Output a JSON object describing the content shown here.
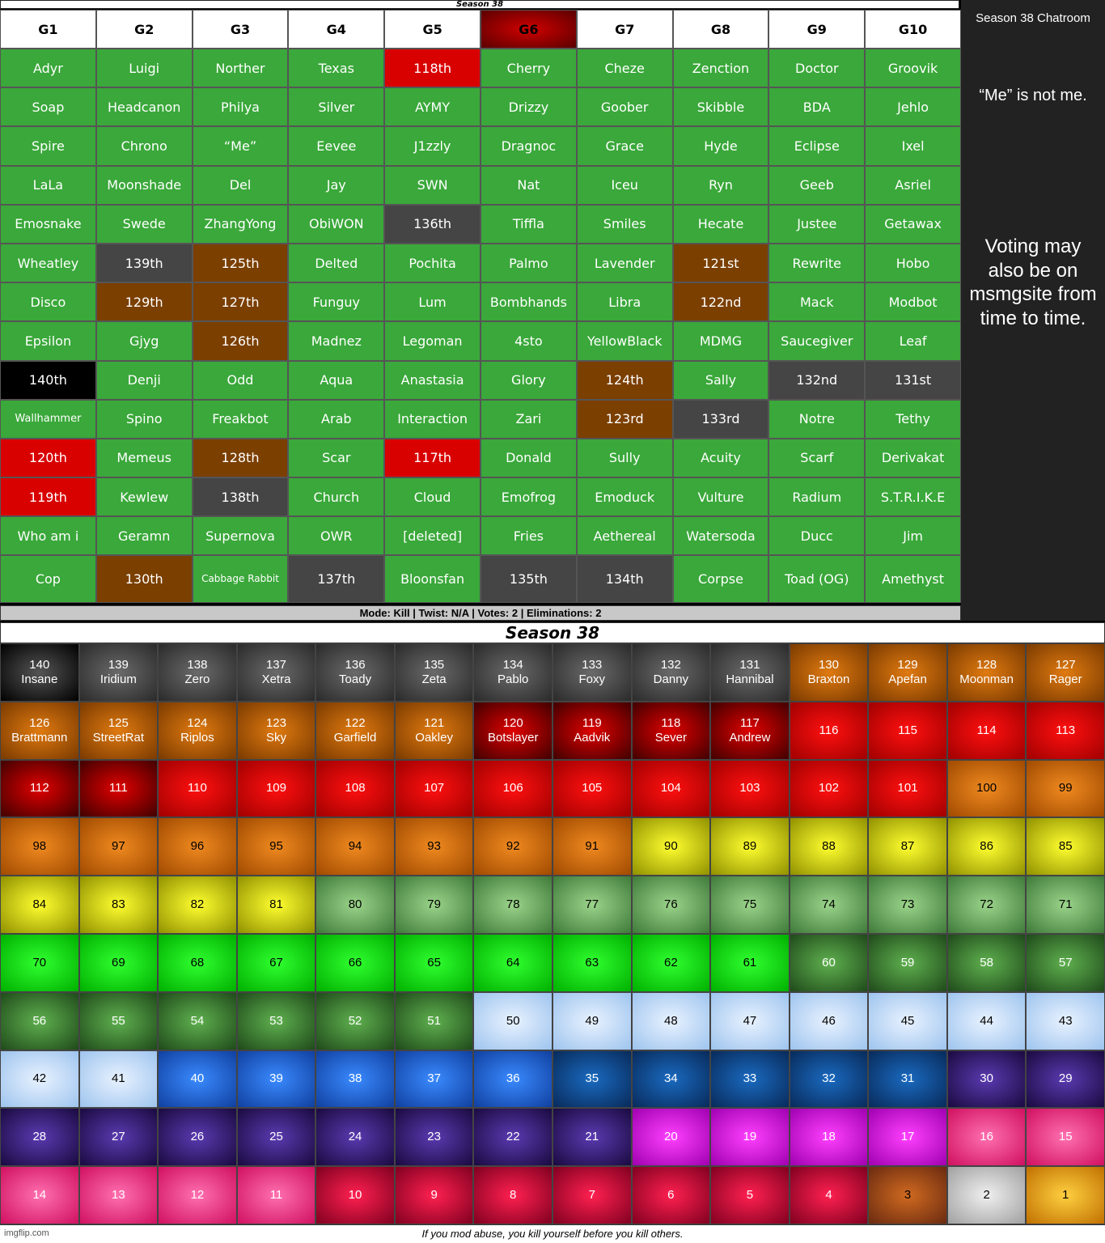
{
  "top_title": "Season 38",
  "groups": {
    "headers": [
      "G1",
      "G2",
      "G3",
      "G4",
      "G5",
      "G6",
      "G7",
      "G8",
      "G9",
      "G10"
    ],
    "rows": [
      [
        [
          "Adyr",
          "alive"
        ],
        [
          "Luigi",
          "alive"
        ],
        [
          "Norther",
          "alive"
        ],
        [
          "Texas",
          "alive"
        ],
        [
          "118th",
          "red"
        ],
        [
          "Cherry",
          "alive"
        ],
        [
          "Cheze",
          "alive"
        ],
        [
          "Zenction",
          "alive"
        ],
        [
          "Doctor",
          "alive"
        ],
        [
          "Groovik",
          "alive"
        ]
      ],
      [
        [
          "Soap",
          "alive"
        ],
        [
          "Headcanon",
          "alive"
        ],
        [
          "Philya",
          "alive"
        ],
        [
          "Silver",
          "alive"
        ],
        [
          "AYMY",
          "alive"
        ],
        [
          "Drizzy",
          "alive"
        ],
        [
          "Goober",
          "alive"
        ],
        [
          "Skibble",
          "alive"
        ],
        [
          "BDA",
          "alive"
        ],
        [
          "Jehlo",
          "alive"
        ]
      ],
      [
        [
          "Spire",
          "alive"
        ],
        [
          "Chrono",
          "alive"
        ],
        [
          "“Me”",
          "alive"
        ],
        [
          "Eevee",
          "alive"
        ],
        [
          "J1zzly",
          "alive"
        ],
        [
          "Dragnoc",
          "alive"
        ],
        [
          "Grace",
          "alive"
        ],
        [
          "Hyde",
          "alive"
        ],
        [
          "Eclipse",
          "alive"
        ],
        [
          "Ixel",
          "alive"
        ]
      ],
      [
        [
          "LaLa",
          "alive"
        ],
        [
          "Moonshade",
          "alive"
        ],
        [
          "Del",
          "alive"
        ],
        [
          "Jay",
          "alive"
        ],
        [
          "SWN",
          "alive"
        ],
        [
          "Nat",
          "alive"
        ],
        [
          "Iceu",
          "alive"
        ],
        [
          "Ryn",
          "alive"
        ],
        [
          "Geeb",
          "alive"
        ],
        [
          "Asriel",
          "alive"
        ]
      ],
      [
        [
          "Emosnake",
          "alive"
        ],
        [
          "Swede",
          "alive"
        ],
        [
          "ZhangYong",
          "alive"
        ],
        [
          "ObiWON",
          "alive"
        ],
        [
          "136th",
          "gray"
        ],
        [
          "Tiffla",
          "alive"
        ],
        [
          "Smiles",
          "alive"
        ],
        [
          "Hecate",
          "alive"
        ],
        [
          "Justee",
          "alive"
        ],
        [
          "Getawax",
          "alive"
        ]
      ],
      [
        [
          "Wheatley",
          "alive"
        ],
        [
          "139th",
          "gray"
        ],
        [
          "125th",
          "brown"
        ],
        [
          "Delted",
          "alive"
        ],
        [
          "Pochita",
          "alive"
        ],
        [
          "Palmo",
          "alive"
        ],
        [
          "Lavender",
          "alive"
        ],
        [
          "121st",
          "brown"
        ],
        [
          "Rewrite",
          "alive"
        ],
        [
          "Hobo",
          "alive"
        ]
      ],
      [
        [
          "Disco",
          "alive"
        ],
        [
          "129th",
          "brown"
        ],
        [
          "127th",
          "brown"
        ],
        [
          "Funguy",
          "alive"
        ],
        [
          "Lum",
          "alive"
        ],
        [
          "Bombhands",
          "alive"
        ],
        [
          "Libra",
          "alive"
        ],
        [
          "122nd",
          "brown"
        ],
        [
          "Mack",
          "alive"
        ],
        [
          "Modbot",
          "alive"
        ]
      ],
      [
        [
          "Epsilon",
          "alive"
        ],
        [
          "Gjyg",
          "alive"
        ],
        [
          "126th",
          "brown"
        ],
        [
          "Madnez",
          "alive"
        ],
        [
          "Legoman",
          "alive"
        ],
        [
          "4sto",
          "alive"
        ],
        [
          "YellowBlack",
          "alive"
        ],
        [
          "MDMG",
          "alive"
        ],
        [
          "Saucegiver",
          "alive"
        ],
        [
          "Leaf",
          "alive"
        ]
      ],
      [
        [
          "140th",
          "black"
        ],
        [
          "Denji",
          "alive"
        ],
        [
          "Odd",
          "alive"
        ],
        [
          "Aqua",
          "alive"
        ],
        [
          "Anastasia",
          "alive"
        ],
        [
          "Glory",
          "alive"
        ],
        [
          "124th",
          "brown"
        ],
        [
          "Sally",
          "alive"
        ],
        [
          "132nd",
          "gray"
        ],
        [
          "131st",
          "gray"
        ]
      ],
      [
        [
          "Wallhammer",
          "alive"
        ],
        [
          "Spino",
          "alive"
        ],
        [
          "Freakbot",
          "alive"
        ],
        [
          "Arab",
          "alive"
        ],
        [
          "Interaction",
          "alive"
        ],
        [
          "Zari",
          "alive"
        ],
        [
          "123rd",
          "brown"
        ],
        [
          "133rd",
          "gray"
        ],
        [
          "Notre",
          "alive"
        ],
        [
          "Tethy",
          "alive"
        ]
      ],
      [
        [
          "120th",
          "red"
        ],
        [
          "Memeus",
          "alive"
        ],
        [
          "128th",
          "brown"
        ],
        [
          "Scar",
          "alive"
        ],
        [
          "117th",
          "red"
        ],
        [
          "Donald",
          "alive"
        ],
        [
          "Sully",
          "alive"
        ],
        [
          "Acuity",
          "alive"
        ],
        [
          "Scarf",
          "alive"
        ],
        [
          "Derivakat",
          "alive"
        ]
      ],
      [
        [
          "119th",
          "red"
        ],
        [
          "Kewlew",
          "alive"
        ],
        [
          "138th",
          "gray"
        ],
        [
          "Church",
          "alive"
        ],
        [
          "Cloud",
          "alive"
        ],
        [
          "Emofrog",
          "alive"
        ],
        [
          "Emoduck",
          "alive"
        ],
        [
          "Vulture",
          "alive"
        ],
        [
          "Radium",
          "alive"
        ],
        [
          "S.T.R.I.K.E",
          "alive"
        ]
      ],
      [
        [
          "Who am i",
          "alive"
        ],
        [
          "Geramn",
          "alive"
        ],
        [
          "Supernova",
          "alive"
        ],
        [
          "OWR",
          "alive"
        ],
        [
          "[deleted]",
          "alive"
        ],
        [
          "Fries",
          "alive"
        ],
        [
          "Aethereal",
          "alive"
        ],
        [
          "Watersoda",
          "alive"
        ],
        [
          "Ducc",
          "alive"
        ],
        [
          "Jim",
          "alive"
        ]
      ],
      [
        [
          "Cop",
          "alive"
        ],
        [
          "130th",
          "brown"
        ],
        [
          "Cabbage Rabbit",
          "alive"
        ],
        [
          "137th",
          "gray"
        ],
        [
          "Bloonsfan",
          "alive"
        ],
        [
          "135th",
          "gray"
        ],
        [
          "134th",
          "gray"
        ],
        [
          "Corpse",
          "alive"
        ],
        [
          "Toad (OG)",
          "alive"
        ],
        [
          "Amethyst",
          "alive"
        ]
      ]
    ]
  },
  "mode_bar": "Mode: Kill | Twist: N/A | Votes: 2 | Eliminations: 2",
  "side": {
    "title": "Season 38 Chatroom",
    "note": "“Me” is not me.",
    "voting": "Voting may also be on msmgsite from time to time."
  },
  "bottom_title": "Season 38",
  "colors": {
    "alive": "#3aa83a",
    "red": "#d90000",
    "brown": "#7b3f00",
    "gray": "#454545",
    "black": "#000000"
  },
  "ranks": [
    [
      "140",
      "Insane",
      "black"
    ],
    [
      "139",
      "Iridium",
      "gray"
    ],
    [
      "138",
      "Zero",
      "gray"
    ],
    [
      "137",
      "Xetra",
      "gray"
    ],
    [
      "136",
      "Toady",
      "gray"
    ],
    [
      "135",
      "Zeta",
      "gray"
    ],
    [
      "134",
      "Pablo",
      "gray"
    ],
    [
      "133",
      "Foxy",
      "gray"
    ],
    [
      "132",
      "Danny",
      "gray"
    ],
    [
      "131",
      "Hannibal",
      "gray"
    ],
    [
      "130",
      "Braxton",
      "orange"
    ],
    [
      "129",
      "Apefan",
      "orange"
    ],
    [
      "128",
      "Moonman",
      "orange"
    ],
    [
      "127",
      "Rager",
      "orange"
    ],
    [
      "126",
      "Brattmann",
      "orange"
    ],
    [
      "125",
      "StreetRat",
      "orange"
    ],
    [
      "124",
      "Riplos",
      "orange"
    ],
    [
      "123",
      "Sky",
      "orange"
    ],
    [
      "122",
      "Garfield",
      "orange"
    ],
    [
      "121",
      "Oakley",
      "orange"
    ],
    [
      "120",
      "Botslayer",
      "darkred"
    ],
    [
      "119",
      "Aadvik",
      "darkred"
    ],
    [
      "118",
      "Sever",
      "darkred"
    ],
    [
      "117",
      "Andrew",
      "darkred"
    ],
    [
      "116",
      "",
      "red"
    ],
    [
      "115",
      "",
      "red"
    ],
    [
      "114",
      "",
      "red"
    ],
    [
      "113",
      "",
      "red"
    ],
    [
      "112",
      "",
      "darkred"
    ],
    [
      "111",
      "",
      "darkred"
    ],
    [
      "110",
      "",
      "red"
    ],
    [
      "109",
      "",
      "red"
    ],
    [
      "108",
      "",
      "red"
    ],
    [
      "107",
      "",
      "red"
    ],
    [
      "106",
      "",
      "red"
    ],
    [
      "105",
      "",
      "red"
    ],
    [
      "104",
      "",
      "red"
    ],
    [
      "103",
      "",
      "red"
    ],
    [
      "102",
      "",
      "red"
    ],
    [
      "101",
      "",
      "red"
    ],
    [
      "100",
      "",
      "orange2"
    ],
    [
      "99",
      "",
      "orange2"
    ],
    [
      "98",
      "",
      "orange2"
    ],
    [
      "97",
      "",
      "orange2"
    ],
    [
      "96",
      "",
      "orange2"
    ],
    [
      "95",
      "",
      "orange2"
    ],
    [
      "94",
      "",
      "orange2"
    ],
    [
      "93",
      "",
      "orange2"
    ],
    [
      "92",
      "",
      "orange2"
    ],
    [
      "91",
      "",
      "orange2"
    ],
    [
      "90",
      "",
      "yellow"
    ],
    [
      "89",
      "",
      "yellow"
    ],
    [
      "88",
      "",
      "yellow"
    ],
    [
      "87",
      "",
      "yellow"
    ],
    [
      "86",
      "",
      "yellow"
    ],
    [
      "85",
      "",
      "yellow"
    ],
    [
      "84",
      "",
      "yellow"
    ],
    [
      "83",
      "",
      "yellow"
    ],
    [
      "82",
      "",
      "yellow"
    ],
    [
      "81",
      "",
      "yellow"
    ],
    [
      "80",
      "",
      "sage"
    ],
    [
      "79",
      "",
      "sage"
    ],
    [
      "78",
      "",
      "sage"
    ],
    [
      "77",
      "",
      "sage"
    ],
    [
      "76",
      "",
      "sage"
    ],
    [
      "75",
      "",
      "sage"
    ],
    [
      "74",
      "",
      "sage"
    ],
    [
      "73",
      "",
      "sage"
    ],
    [
      "72",
      "",
      "sage"
    ],
    [
      "71",
      "",
      "sage"
    ],
    [
      "70",
      "",
      "lime"
    ],
    [
      "69",
      "",
      "lime"
    ],
    [
      "68",
      "",
      "lime"
    ],
    [
      "67",
      "",
      "lime"
    ],
    [
      "66",
      "",
      "lime"
    ],
    [
      "65",
      "",
      "lime"
    ],
    [
      "64",
      "",
      "lime"
    ],
    [
      "63",
      "",
      "lime"
    ],
    [
      "62",
      "",
      "lime"
    ],
    [
      "61",
      "",
      "lime"
    ],
    [
      "60",
      "",
      "forest"
    ],
    [
      "59",
      "",
      "forest"
    ],
    [
      "58",
      "",
      "forest"
    ],
    [
      "57",
      "",
      "forest"
    ],
    [
      "56",
      "",
      "forest"
    ],
    [
      "55",
      "",
      "forest"
    ],
    [
      "54",
      "",
      "forest"
    ],
    [
      "53",
      "",
      "forest"
    ],
    [
      "52",
      "",
      "forest"
    ],
    [
      "51",
      "",
      "forest"
    ],
    [
      "50",
      "",
      "ice"
    ],
    [
      "49",
      "",
      "ice"
    ],
    [
      "48",
      "",
      "ice"
    ],
    [
      "47",
      "",
      "ice"
    ],
    [
      "46",
      "",
      "ice"
    ],
    [
      "45",
      "",
      "ice"
    ],
    [
      "44",
      "",
      "ice"
    ],
    [
      "43",
      "",
      "ice"
    ],
    [
      "42",
      "",
      "ice"
    ],
    [
      "41",
      "",
      "ice"
    ],
    [
      "40",
      "",
      "blue"
    ],
    [
      "39",
      "",
      "blue"
    ],
    [
      "38",
      "",
      "blue"
    ],
    [
      "37",
      "",
      "blue"
    ],
    [
      "36",
      "",
      "blue"
    ],
    [
      "35",
      "",
      "navy"
    ],
    [
      "34",
      "",
      "navy"
    ],
    [
      "33",
      "",
      "navy"
    ],
    [
      "32",
      "",
      "navy"
    ],
    [
      "31",
      "",
      "navy"
    ],
    [
      "30",
      "",
      "indigo"
    ],
    [
      "29",
      "",
      "indigo"
    ],
    [
      "28",
      "",
      "indigo"
    ],
    [
      "27",
      "",
      "indigo"
    ],
    [
      "26",
      "",
      "indigo"
    ],
    [
      "25",
      "",
      "indigo"
    ],
    [
      "24",
      "",
      "indigo"
    ],
    [
      "23",
      "",
      "indigo"
    ],
    [
      "22",
      "",
      "indigo"
    ],
    [
      "21",
      "",
      "indigo"
    ],
    [
      "20",
      "",
      "magenta"
    ],
    [
      "19",
      "",
      "magenta"
    ],
    [
      "18",
      "",
      "magenta"
    ],
    [
      "17",
      "",
      "magenta"
    ],
    [
      "16",
      "",
      "pink"
    ],
    [
      "15",
      "",
      "pink"
    ],
    [
      "14",
      "",
      "pink"
    ],
    [
      "13",
      "",
      "pink"
    ],
    [
      "12",
      "",
      "pink"
    ],
    [
      "11",
      "",
      "pink"
    ],
    [
      "10",
      "",
      "crimson"
    ],
    [
      "9",
      "",
      "crimson"
    ],
    [
      "8",
      "",
      "crimson"
    ],
    [
      "7",
      "",
      "crimson"
    ],
    [
      "6",
      "",
      "crimson"
    ],
    [
      "5",
      "",
      "crimson"
    ],
    [
      "4",
      "",
      "crimson"
    ],
    [
      "3",
      "",
      "bronze"
    ],
    [
      "2",
      "",
      "silver"
    ],
    [
      "1",
      "",
      "gold"
    ]
  ],
  "rank_colors": {
    "black": [
      "#555555",
      "#000000",
      "#ffffff"
    ],
    "gray": [
      "#6a6a6a",
      "#2a2a2a",
      "#ffffff"
    ],
    "orange": [
      "#e07a10",
      "#7a3a00",
      "#ffffff"
    ],
    "darkred": [
      "#e00000",
      "#400000",
      "#ffffff"
    ],
    "red": [
      "#ff1010",
      "#a00000",
      "#ffffff"
    ],
    "orange2": [
      "#f08a20",
      "#a04a00",
      "#000000"
    ],
    "yellow": [
      "#ffff30",
      "#909000",
      "#000000"
    ],
    "sage": [
      "#9bd48a",
      "#3f7a3a",
      "#000000"
    ],
    "lime": [
      "#30ff30",
      "#00b000",
      "#000000"
    ],
    "forest": [
      "#5fb04f",
      "#1f4a1a",
      "#ffffff"
    ],
    "ice": [
      "#e8f2ff",
      "#9ec4ee",
      "#000000"
    ],
    "blue": [
      "#3a8aff",
      "#1040a0",
      "#ffffff"
    ],
    "navy": [
      "#1a6ac0",
      "#082a5a",
      "#ffffff"
    ],
    "indigo": [
      "#5a3ab0",
      "#1a0a40",
      "#ffffff"
    ],
    "magenta": [
      "#ff40ff",
      "#a000b0",
      "#ffffff"
    ],
    "pink": [
      "#ff70b0",
      "#d01060",
      "#ffffff"
    ],
    "crimson": [
      "#ff2050",
      "#800020",
      "#ffffff"
    ],
    "bronze": [
      "#d06a20",
      "#6a2a10",
      "#000000"
    ],
    "silver": [
      "#f0f0f0",
      "#a0a0a0",
      "#000000"
    ],
    "gold": [
      "#ffd040",
      "#c07000",
      "#000000"
    ]
  },
  "footer": "If you mod abuse, you kill yourself before you kill others.",
  "watermark": "imgflip.com"
}
